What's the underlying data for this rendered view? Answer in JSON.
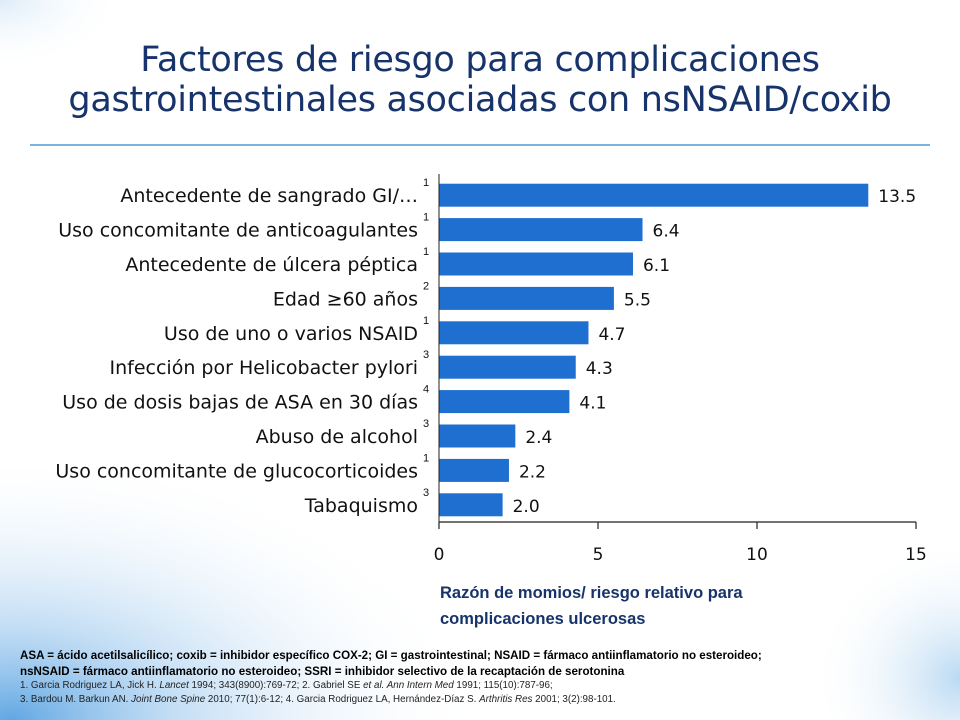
{
  "slide": {
    "title_line1": "Factores de riesgo para complicaciones",
    "title_line2": "gastrointestinales asociadas con nsNSAID/coxib"
  },
  "colors": {
    "title": "#17336b",
    "bar": "#1f6fd1",
    "axis_title": "#17336b",
    "rule": "#7fb3df"
  },
  "chart_data": {
    "type": "bar",
    "orientation": "horizontal",
    "categories": [
      "Antecedente de sangrado GI/…",
      "Uso concomitante de anticoagulantes",
      "Antecedente de úlcera péptica",
      "Edad ≥60 años",
      "Uso de uno o varios NSAID",
      "Infección por Helicobacter pylori",
      "Uso de dosis bajas de ASA en 30 días",
      "Abuso de alcohol",
      "Uso concomitante de glucocorticoides",
      "Tabaquismo"
    ],
    "reference_marks": [
      "1",
      "1",
      "1",
      "2",
      "1",
      "3",
      "4",
      "3",
      "1",
      "3"
    ],
    "values": [
      13.5,
      6.4,
      6.1,
      5.5,
      4.7,
      4.3,
      4.1,
      2.4,
      2.2,
      2.0
    ],
    "value_labels": [
      "13.5",
      "6.4",
      "6.1",
      "5.5",
      "4.7",
      "4.3",
      "4.1",
      "2.4",
      "2.2",
      "2.0"
    ],
    "xlim": [
      0,
      15
    ],
    "xticks": [
      0,
      5,
      10,
      15
    ],
    "xtick_labels": [
      "0",
      "5",
      "10",
      "15"
    ],
    "xlabel_line1": "Razón de momios/ riesgo relativo para",
    "xlabel_line2": "complicaciones ulcerosas",
    "grid": false,
    "legend": "none"
  },
  "footer": {
    "abbreviations_line1": "ASA = ácido acetilsalicílico; coxib = inhibidor específico COX-2; GI = gastrointestinal; NSAID = fármaco antiinflamatorio no esteroideo;",
    "abbreviations_line2": "nsNSAID = fármaco antiinflamatorio no esteroideo; SSRI = inhibidor selectivo de la recaptación de serotonina",
    "ref1_a": "1. Garcia Rodriguez LA, Jick H. ",
    "ref1_j": "Lancet",
    "ref1_b": " 1994; 343(8900):769-72; 2. Gabriel SE ",
    "ref1_etal": "et al. Ann Intern Med",
    "ref1_c": " 1991; 115(10):787-96;",
    "ref2_a": "3. Bardou M. Barkun AN. ",
    "ref2_j": "Joint Bone Spine",
    "ref2_b": " 2010; 77(1):6-12; 4. Garcia Rodriguez LA, Hernández-Díaz S. ",
    "ref2_j2": "Arthritis Res",
    "ref2_c": " 2001; 3(2):98-101."
  }
}
